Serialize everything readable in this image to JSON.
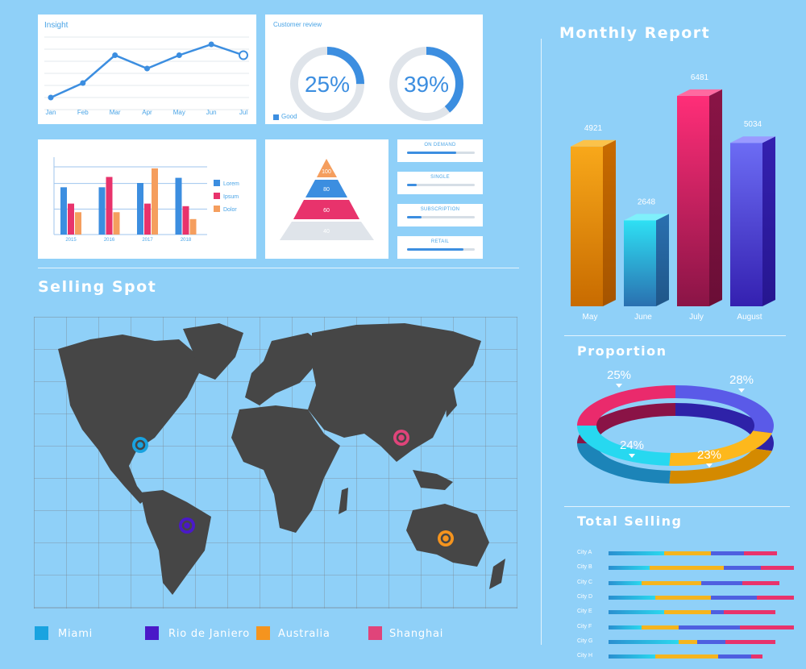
{
  "colors": {
    "background": "#8fd0f8",
    "blue": "#3c8ee0",
    "pink": "#e8336c",
    "orange": "#f59e5e",
    "miami": "#19a3e0",
    "rio": "#4a19c8",
    "australia": "#f5941e",
    "shanghai": "#e0447a"
  },
  "insight": {
    "title": "Insight"
  },
  "review": {
    "title": "Customer review",
    "legend": "Good",
    "rings": [
      {
        "label": "25%",
        "value": 25
      },
      {
        "label": "39%",
        "value": 39
      }
    ]
  },
  "pyramid": {
    "levels": [
      {
        "label": "100"
      },
      {
        "label": "80"
      },
      {
        "label": "60"
      },
      {
        "label": "40"
      }
    ]
  },
  "pills": [
    {
      "label": "ON DEMAND",
      "value": 0.73
    },
    {
      "label": "SINGLE",
      "value": 0.14
    },
    {
      "label": "SUBSCRIPTION",
      "value": 0.22
    },
    {
      "label": "RETAIL",
      "value": 0.83
    }
  ],
  "monthly": {
    "title": "Monthly Report"
  },
  "selling": {
    "title": "Selling Spot",
    "legend": [
      {
        "label": "Miami",
        "color": "#19a3e0"
      },
      {
        "label": "Rio de Janiero",
        "color": "#4a19c8"
      },
      {
        "label": "Australia",
        "color": "#f5941e"
      },
      {
        "label": "Shanghai",
        "color": "#e0447a"
      }
    ]
  },
  "proportion": {
    "title": "Proportion"
  },
  "total": {
    "title": "Total Selling"
  },
  "chart_data": [
    {
      "type": "line",
      "title": "Insight",
      "categories": [
        "Jan",
        "Feb",
        "Mar",
        "Apr",
        "May",
        "Jun",
        "Jul"
      ],
      "values": [
        1,
        2.2,
        4.5,
        3.4,
        4.5,
        5.4,
        4.5
      ],
      "ylim": [
        0,
        6
      ],
      "grid": true
    },
    {
      "type": "bar",
      "categories": [
        "2015",
        "2016",
        "2017",
        "2018"
      ],
      "series": [
        {
          "name": "Lorem",
          "values": [
            55,
            55,
            60,
            66
          ]
        },
        {
          "name": "Ipsum",
          "values": [
            36,
            67,
            36,
            33
          ]
        },
        {
          "name": "Dolor",
          "values": [
            26,
            26,
            77,
            18
          ]
        }
      ],
      "ylim": [
        0,
        90
      ],
      "grid": true,
      "legend": "right"
    },
    {
      "type": "bar",
      "title": "Monthly Report",
      "categories": [
        "May",
        "June",
        "July",
        "August"
      ],
      "values": [
        4921,
        2648,
        6481,
        5034
      ],
      "ylim": [
        0,
        7000
      ]
    },
    {
      "type": "pie",
      "title": "Proportion",
      "labels": [
        "25%",
        "28%",
        "23%",
        "24%"
      ],
      "values": [
        25,
        28,
        23,
        24
      ]
    },
    {
      "type": "bar",
      "title": "Total Selling",
      "categories": [
        "City A",
        "City B",
        "City C",
        "City D",
        "City E",
        "City F",
        "City G",
        "City H"
      ],
      "segments": [
        [
          0.3,
          0.25,
          0.18,
          0.18
        ],
        [
          0.22,
          0.4,
          0.2,
          0.18
        ],
        [
          0.18,
          0.32,
          0.22,
          0.2
        ],
        [
          0.25,
          0.3,
          0.25,
          0.2
        ],
        [
          0.3,
          0.25,
          0.07,
          0.28
        ],
        [
          0.18,
          0.2,
          0.33,
          0.29
        ],
        [
          0.38,
          0.1,
          0.15,
          0.27
        ],
        [
          0.25,
          0.34,
          0.18,
          0.06
        ]
      ],
      "stacked": true
    }
  ]
}
